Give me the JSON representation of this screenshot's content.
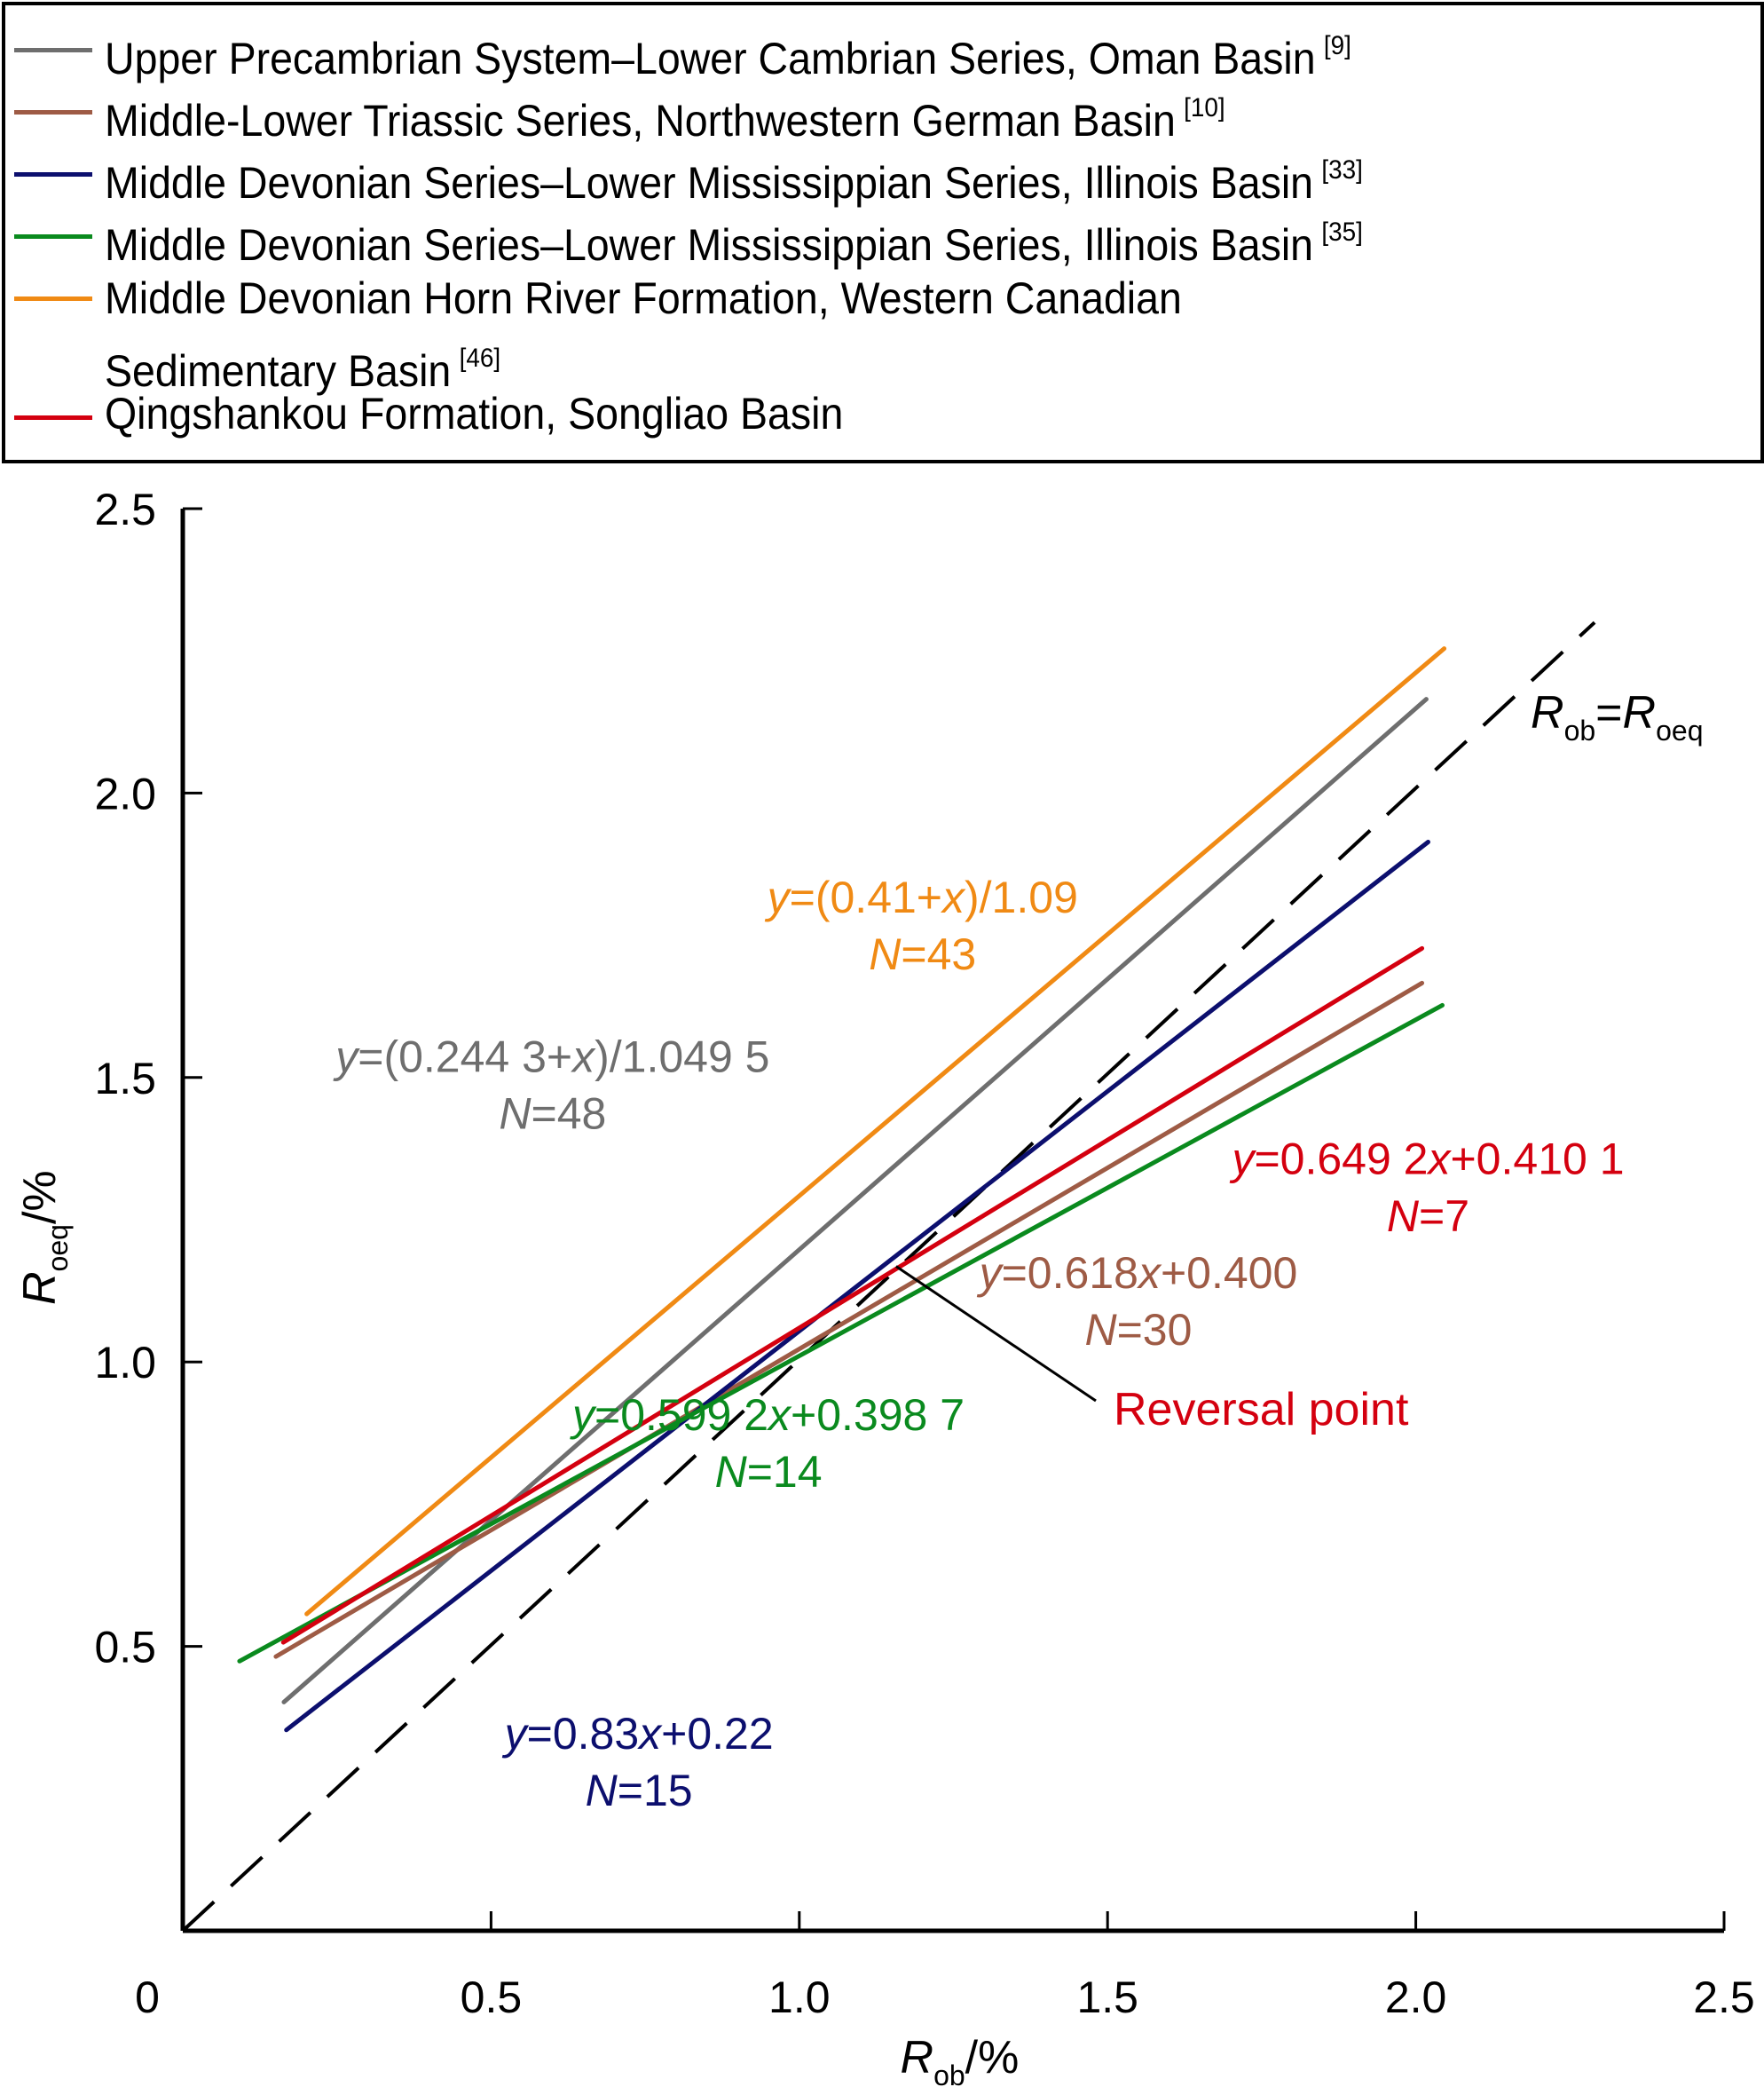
{
  "legend": {
    "items": [
      {
        "label": "Upper Precambrian System–Lower Cambrian Series, Oman Basin",
        "ref": "[9]",
        "color": "#6e6e6e"
      },
      {
        "label": "Middle-Lower Triassic Series, Northwestern German Basin",
        "ref": "[10]",
        "color": "#9e5b45"
      },
      {
        "label": "Middle Devonian Series–Lower Mississippian Series, Illinois Basin",
        "ref": "[33]",
        "color": "#0c0f6e"
      },
      {
        "label": "Middle Devonian Series–Lower Mississippian Series, Illinois Basin",
        "ref": "[35]",
        "color": "#0a8a1e"
      },
      {
        "label": "Middle Devonian Horn River Formation, Western Canadian",
        "label2": "Sedimentary Basin",
        "ref": "[46]",
        "color": "#f08a14"
      },
      {
        "label": "Qingshankou Formation, Songliao Basin",
        "ref": "",
        "color": "#d4000f"
      }
    ]
  },
  "chart_data": {
    "type": "line",
    "title": "",
    "xlabel": {
      "main": "R",
      "sub": "ob",
      "suffix": "/%"
    },
    "ylabel": {
      "main": "R",
      "sub": "oeq",
      "suffix": "/%"
    },
    "xlim": [
      0,
      2.5
    ],
    "ylim": [
      0,
      2.5
    ],
    "x_ticks": [
      {
        "v": 0,
        "label": "0"
      },
      {
        "v": 0.5,
        "label": "0.5"
      },
      {
        "v": 1.0,
        "label": "1.0"
      },
      {
        "v": 1.5,
        "label": "1.5"
      },
      {
        "v": 2.0,
        "label": "2.0"
      },
      {
        "v": 2.5,
        "label": "2.5"
      }
    ],
    "y_ticks": [
      {
        "v": 0.5,
        "label": "0.5"
      },
      {
        "v": 1.0,
        "label": "1.0"
      },
      {
        "v": 1.5,
        "label": "1.5"
      },
      {
        "v": 2.0,
        "label": "2.0"
      },
      {
        "v": 2.5,
        "label": "2.5"
      }
    ],
    "grid": false,
    "series": [
      {
        "name": "Upper Precambrian System–Lower Cambrian Series, Oman Basin",
        "color": "#6e6e6e",
        "x": [
          0.164,
          2.017
        ],
        "y": [
          0.402,
          2.165
        ],
        "equation": "y=(0.244 3+x)/1.049 5",
        "n_label": "N=48",
        "eq_at": [
          0.6,
          1.51
        ],
        "n_at": [
          0.6,
          1.41
        ]
      },
      {
        "name": "Middle-Lower Triassic Series, Northwestern German Basin",
        "color": "#9e5b45",
        "x": [
          0.151,
          2.01
        ],
        "y": [
          0.482,
          1.666
        ],
        "equation": "y=0.618x+0.400",
        "n_label": "N=30",
        "eq_at": [
          1.55,
          1.13
        ],
        "n_at": [
          1.55,
          1.03
        ]
      },
      {
        "name": "Middle Devonian Series–Lower Mississippian Series, Illinois Basin [33]",
        "color": "#0c0f6e",
        "x": [
          0.168,
          2.02
        ],
        "y": [
          0.353,
          1.914
        ],
        "equation": "y=0.83x+0.22",
        "n_label": "N=15",
        "eq_at": [
          0.74,
          0.32
        ],
        "n_at": [
          0.74,
          0.22
        ]
      },
      {
        "name": "Middle Devonian Series–Lower Mississippian Series, Illinois Basin [35]",
        "color": "#0a8a1e",
        "x": [
          0.092,
          2.043
        ],
        "y": [
          0.474,
          1.627
        ],
        "equation": "y=0.599 2x+0.398 7",
        "n_label": "N=14",
        "eq_at": [
          0.95,
          0.88
        ],
        "n_at": [
          0.95,
          0.78
        ]
      },
      {
        "name": "Middle Devonian Horn River Formation, Western Canadian Sedimentary Basin",
        "color": "#f08a14",
        "x": [
          0.201,
          2.046
        ],
        "y": [
          0.557,
          2.254
        ],
        "equation": "y=(0.41+x)/1.09",
        "n_label": "N=43",
        "eq_at": [
          1.2,
          1.79
        ],
        "n_at": [
          1.2,
          1.69
        ]
      },
      {
        "name": "Qingshankou Formation, Songliao Basin",
        "color": "#d4000f",
        "x": [
          0.163,
          2.01
        ],
        "y": [
          0.507,
          1.727
        ],
        "equation": "y=0.649 2x+0.410 1",
        "n_label": "N=7",
        "eq_at": [
          2.02,
          1.33
        ],
        "n_at": [
          2.02,
          1.23
        ]
      }
    ],
    "reference_line": {
      "label_main": "R",
      "label_sub1": "ob",
      "label_eq": "=",
      "label_main2": "R",
      "label_sub2": "oeq",
      "x": [
        0,
        2.29
      ],
      "y": [
        0,
        2.3
      ],
      "style": "dashed"
    },
    "annotation": {
      "text": "Reversal point",
      "point": [
        1.157,
        1.168
      ],
      "label_at": [
        1.5,
        0.93
      ],
      "color": "#d4000f"
    }
  }
}
